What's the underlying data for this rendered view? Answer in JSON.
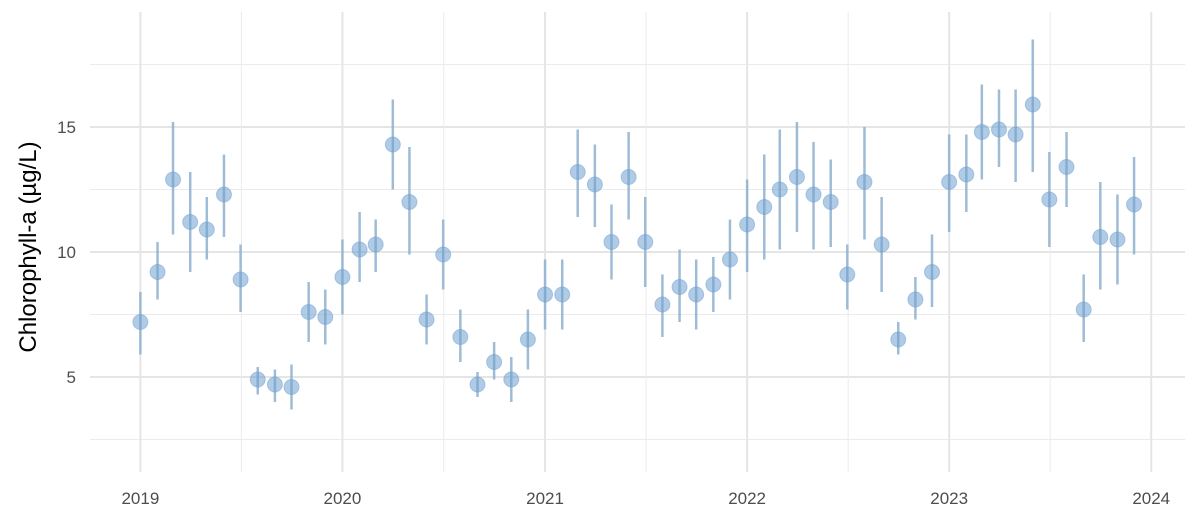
{
  "chart_data": {
    "type": "scatter",
    "title": "",
    "xlabel": "",
    "ylabel": "Chlorophyll-a (µg/L)",
    "xlim": [
      "2018-10-02",
      "2024-03-02"
    ],
    "ylim": [
      1.2,
      19.6
    ],
    "x_ticks": [
      "2019-01-01",
      "2020-01-01",
      "2021-01-01",
      "2022-01-01",
      "2023-01-01",
      "2024-01-01"
    ],
    "x_tick_labels": [
      "2019",
      "2020",
      "2021",
      "2022",
      "2023",
      "2024"
    ],
    "y_ticks": [
      5,
      10,
      15
    ],
    "y_tick_labels": [
      "5",
      "10",
      "15"
    ],
    "grid": true,
    "legend": "none",
    "point_color": "#6fa0cf",
    "errorbar_color": "#8eb0cf",
    "series": [
      {
        "x": [
          "2019-01-01",
          "2019-02-01",
          "2019-03-01",
          "2019-04-01",
          "2019-05-01",
          "2019-06-01",
          "2019-07-01",
          "2019-08-01",
          "2019-09-01",
          "2019-10-01",
          "2019-11-01",
          "2019-12-01",
          "2020-01-01",
          "2020-02-01",
          "2020-03-01",
          "2020-04-01",
          "2020-05-01",
          "2020-06-01",
          "2020-07-01",
          "2020-08-01",
          "2020-09-01",
          "2020-10-01",
          "2020-11-01",
          "2020-12-01",
          "2021-01-01",
          "2021-02-01",
          "2021-03-01",
          "2021-04-01",
          "2021-05-01",
          "2021-06-01",
          "2021-07-01",
          "2021-08-01",
          "2021-09-01",
          "2021-10-01",
          "2021-11-01",
          "2021-12-01",
          "2022-01-01",
          "2022-02-01",
          "2022-03-01",
          "2022-04-01",
          "2022-05-01",
          "2022-06-01",
          "2022-07-01",
          "2022-08-01",
          "2022-09-01",
          "2022-10-01",
          "2022-11-01",
          "2022-12-01",
          "2023-01-01",
          "2023-02-01",
          "2023-03-01",
          "2023-04-01",
          "2023-05-01",
          "2023-06-01",
          "2023-07-01",
          "2023-08-01",
          "2023-09-01",
          "2023-10-01",
          "2023-11-01",
          "2023-12-01"
        ],
        "y": [
          7.2,
          9.2,
          12.9,
          11.2,
          10.9,
          12.3,
          8.9,
          4.9,
          4.7,
          4.6,
          7.6,
          7.4,
          9.0,
          10.1,
          10.3,
          14.3,
          12.0,
          7.3,
          9.9,
          6.6,
          4.7,
          5.6,
          4.9,
          6.5,
          8.3,
          8.3,
          13.2,
          12.7,
          10.4,
          13.0,
          10.4,
          7.9,
          8.6,
          8.3,
          8.7,
          9.7,
          11.1,
          11.8,
          12.5,
          13.0,
          12.3,
          12.0,
          9.1,
          12.8,
          10.3,
          6.5,
          8.1,
          9.2,
          12.8,
          13.1,
          14.8,
          14.9,
          14.7,
          15.9,
          12.1,
          13.4,
          7.7,
          10.6,
          10.5,
          11.9
        ],
        "y_low": [
          5.9,
          8.1,
          10.7,
          9.2,
          9.7,
          10.6,
          7.6,
          4.3,
          4.0,
          3.7,
          6.4,
          6.3,
          7.5,
          8.8,
          9.2,
          12.5,
          9.9,
          6.3,
          8.5,
          5.6,
          4.2,
          4.9,
          4.0,
          5.3,
          6.9,
          6.9,
          11.4,
          11.0,
          8.9,
          11.3,
          8.6,
          6.6,
          7.2,
          6.9,
          7.6,
          8.1,
          9.2,
          9.7,
          10.1,
          10.8,
          10.1,
          10.2,
          7.7,
          10.5,
          8.4,
          5.9,
          7.3,
          7.8,
          10.8,
          11.6,
          12.9,
          13.4,
          12.8,
          13.2,
          10.2,
          11.8,
          6.4,
          8.5,
          8.7,
          9.9
        ],
        "y_high": [
          8.4,
          10.4,
          15.2,
          13.2,
          12.2,
          13.9,
          10.3,
          5.4,
          5.3,
          5.5,
          8.8,
          8.5,
          10.5,
          11.6,
          11.3,
          16.1,
          14.2,
          8.3,
          11.3,
          7.7,
          5.2,
          6.4,
          5.8,
          7.7,
          9.7,
          9.7,
          14.9,
          14.3,
          11.9,
          14.8,
          12.2,
          9.1,
          10.1,
          9.7,
          9.8,
          11.3,
          12.9,
          13.9,
          14.9,
          15.2,
          14.4,
          13.7,
          10.3,
          15.0,
          12.2,
          7.2,
          9.0,
          10.7,
          14.7,
          14.7,
          16.7,
          16.5,
          16.5,
          18.5,
          14.0,
          14.8,
          9.1,
          12.8,
          12.3,
          13.8
        ]
      }
    ]
  }
}
